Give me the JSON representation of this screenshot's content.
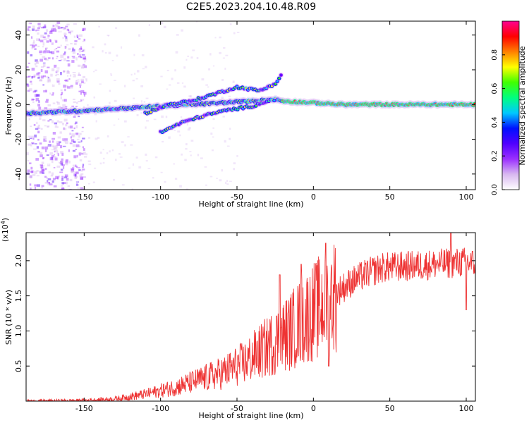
{
  "title": "C2E5.2023.204.10.48.R09",
  "chart_data": [
    {
      "type": "heatmap",
      "xlabel": "Height of straight line (km)",
      "ylabel": "Frequency (Hz)",
      "xlim": [
        -188,
        106
      ],
      "ylim": [
        -49,
        48
      ],
      "x_ticks": [
        "-150",
        "-100",
        "-50",
        "0",
        "50",
        "100"
      ],
      "x_tick_values": [
        -150,
        -100,
        -50,
        0,
        50,
        100
      ],
      "y_ticks": [
        "-40",
        "-20",
        "0",
        "20",
        "40"
      ],
      "y_tick_values": [
        -40,
        -20,
        0,
        20,
        40
      ],
      "colorbar": {
        "label": "Normalized spectral amplitude",
        "range": [
          0,
          1
        ],
        "ticks": [
          "0.0",
          "0.2",
          "0.4",
          "0.6",
          "0.8"
        ],
        "tick_values": [
          0.0,
          0.2,
          0.4,
          0.6,
          0.8
        ],
        "colormap": [
          "#ffffff",
          "#d8b8f0",
          "#9b30ff",
          "#5000ff",
          "#0010ff",
          "#00c8ff",
          "#00ff80",
          "#40ff00",
          "#ffff00",
          "#ff8000",
          "#ff0000",
          "#ff0090"
        ]
      },
      "features": [
        {
          "name": "carrier",
          "x": [
            -188,
            -160,
            -140,
            -120,
            -100,
            -80,
            -60,
            -40,
            -25,
            -20,
            0,
            20,
            50,
            80,
            106
          ],
          "y": [
            -5,
            -4,
            -3,
            -2,
            -1,
            0,
            1,
            2,
            3,
            2,
            1,
            0,
            0,
            0,
            0
          ]
        },
        {
          "name": "upper branch",
          "x": [
            -110,
            -95,
            -80,
            -65,
            -50,
            -35,
            -25,
            -20
          ],
          "y": [
            -5,
            0,
            2,
            6,
            10,
            8,
            12,
            18
          ]
        },
        {
          "name": "lower branch",
          "x": [
            -100,
            -85,
            -70,
            -55,
            -40,
            -30,
            -25
          ],
          "y": [
            -16,
            -10,
            -6,
            -3,
            -1,
            2,
            3
          ]
        }
      ]
    },
    {
      "type": "line",
      "xlabel": "Height of straight line (km)",
      "ylabel": "SNR (10 * v/v)",
      "multiplier": "(x10",
      "multiplier_exp": "4",
      "multiplier_close": ")",
      "xlim": [
        -188,
        106
      ],
      "ylim": [
        0,
        24000
      ],
      "x_ticks": [
        "-150",
        "-100",
        "-50",
        "0",
        "50",
        "100"
      ],
      "x_tick_values": [
        -150,
        -100,
        -50,
        0,
        50,
        100
      ],
      "y_ticks": [
        "0.5",
        "1.0",
        "1.5",
        "2.0"
      ],
      "y_tick_values": [
        5000,
        10000,
        15000,
        20000
      ],
      "color": "#ee3333",
      "envelope": {
        "x": [
          -188,
          -150,
          -130,
          -110,
          -90,
          -75,
          -60,
          -45,
          -35,
          -25,
          -15,
          -5,
          5,
          15,
          25,
          35,
          45,
          60,
          80,
          100,
          106
        ],
        "y": [
          0,
          100,
          300,
          1000,
          2000,
          3000,
          4000,
          5500,
          7000,
          8500,
          10000,
          12000,
          13500,
          15500,
          17000,
          18200,
          19000,
          19200,
          19500,
          19800,
          19600
        ]
      },
      "spikes": [
        {
          "x": -22,
          "y": 18000
        },
        {
          "x": -8,
          "y": 19500
        },
        {
          "x": 8,
          "y": 22500
        },
        {
          "x": 10,
          "y": 5000
        },
        {
          "x": 90,
          "y": 24000
        },
        {
          "x": 100,
          "y": 13000
        }
      ]
    }
  ]
}
